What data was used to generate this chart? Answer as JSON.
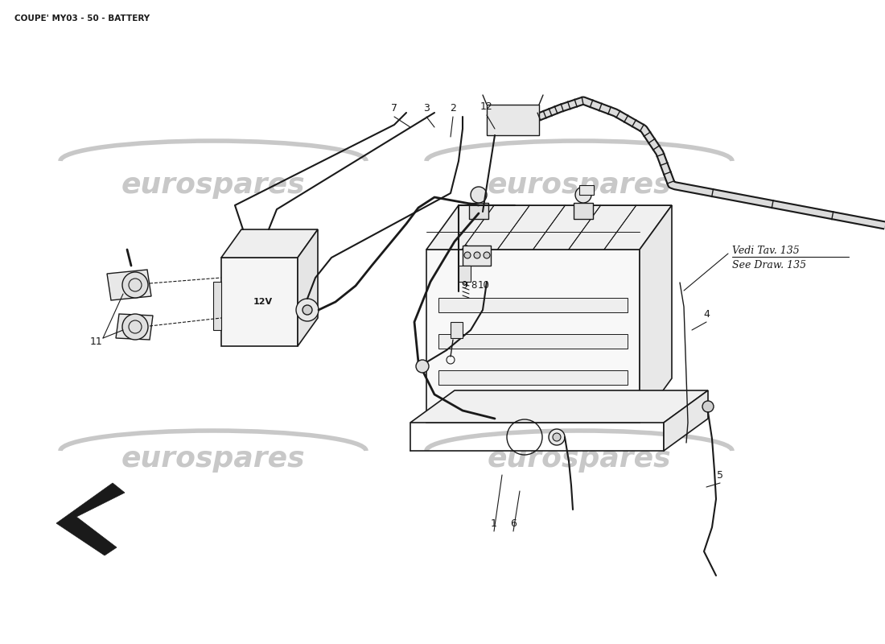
{
  "title": "COUPE' MY03 - 50 - BATTERY",
  "title_fontsize": 7.5,
  "background_color": "#ffffff",
  "line_color": "#1a1a1a",
  "watermark_color": "#c8c8c8",
  "annotation_note_line1": "Vedi Tav. 135",
  "annotation_note_line2": "See Draw. 135",
  "figsize": [
    11.0,
    8.0
  ],
  "dpi": 100
}
